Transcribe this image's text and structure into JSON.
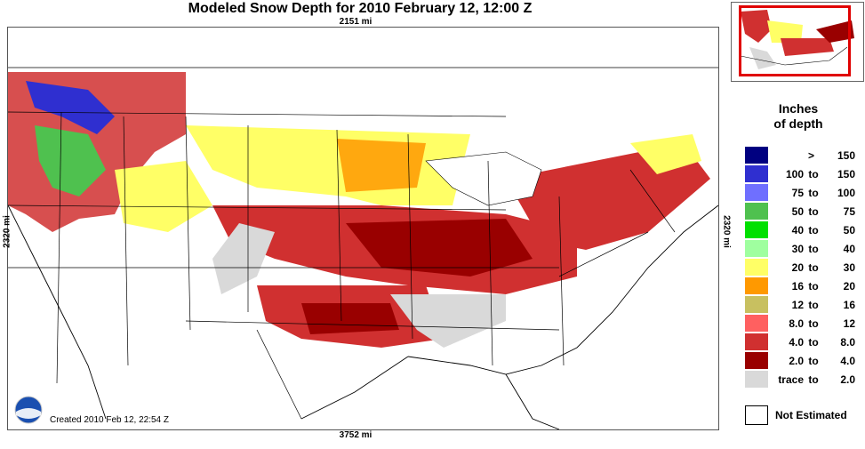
{
  "title": "Modeled Snow Depth for 2010 February 12, 12:00 Z",
  "scale": {
    "top": "2151 mi",
    "bottom": "3752 mi",
    "left": "2320 mi",
    "right": "2320 mi"
  },
  "created": "Created 2010 Feb 12, 22:54 Z",
  "logo_text": "NOAA",
  "legend": {
    "title_line1": "Inches",
    "title_line2": "of depth",
    "to_word": "to",
    "gt_symbol": ">",
    "classes": [
      {
        "min": "",
        "max": "150",
        "color": "#000080",
        "gt": true
      },
      {
        "min": "100",
        "max": "150",
        "color": "#2f2fd0"
      },
      {
        "min": "75",
        "max": "100",
        "color": "#6f6fff"
      },
      {
        "min": "50",
        "max": "75",
        "color": "#4fc14f"
      },
      {
        "min": "40",
        "max": "50",
        "color": "#00e000"
      },
      {
        "min": "30",
        "max": "40",
        "color": "#9fff9f"
      },
      {
        "min": "20",
        "max": "30",
        "color": "#ffff66"
      },
      {
        "min": "16",
        "max": "20",
        "color": "#ff9900"
      },
      {
        "min": "12",
        "max": "16",
        "color": "#c8c060"
      },
      {
        "min": "8.0",
        "max": "12",
        "color": "#ff6060"
      },
      {
        "min": "4.0",
        "max": "8.0",
        "color": "#d03030"
      },
      {
        "min": "2.0",
        "max": "4.0",
        "color": "#990000"
      },
      {
        "min": "trace",
        "max": "2.0",
        "color": "#d9d9d9"
      }
    ],
    "not_estimated": "Not Estimated"
  },
  "colors": {
    "border": "#555555",
    "inset_frame": "#e00000"
  }
}
